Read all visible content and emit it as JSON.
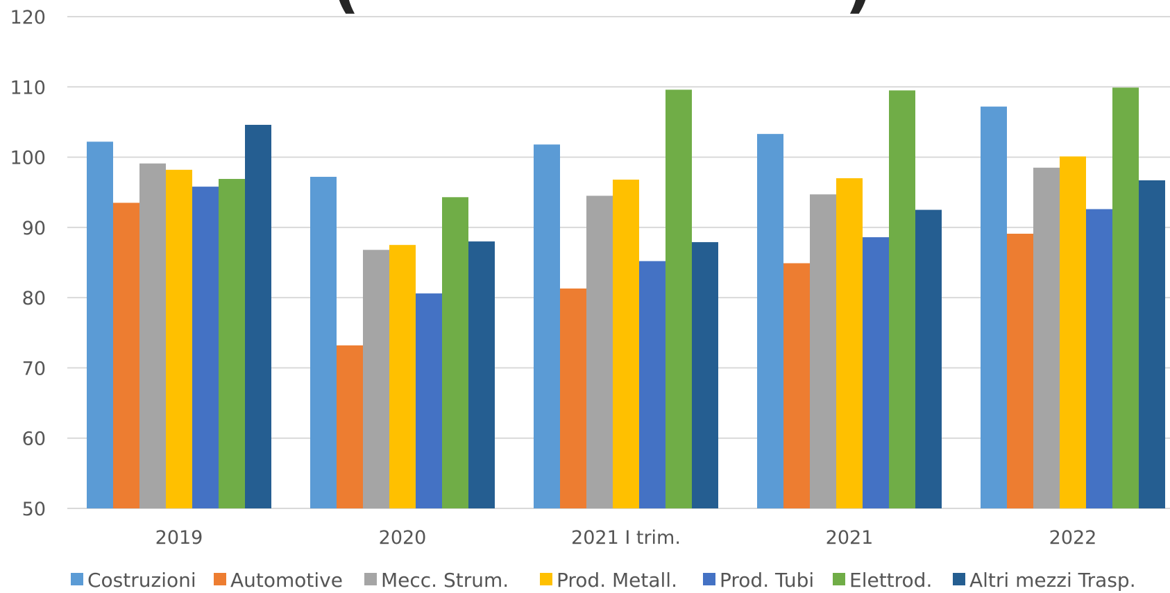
{
  "chart_data": {
    "type": "bar",
    "title_fragment_left": "(",
    "title_fragment_right": ")",
    "categories": [
      "2019",
      "2020",
      "2021 I trim.",
      "2021",
      "2022"
    ],
    "ylim": [
      50,
      120
    ],
    "yticks": [
      50,
      60,
      70,
      80,
      90,
      100,
      110,
      120
    ],
    "grid": true,
    "legend_position": "bottom",
    "series": [
      {
        "name": "Costruzioni",
        "color": "#5B9BD5",
        "values": [
          102.2,
          97.2,
          101.8,
          103.3,
          107.2
        ]
      },
      {
        "name": "Automotive",
        "color": "#ED7D31",
        "values": [
          93.5,
          73.2,
          81.3,
          84.9,
          89.1
        ]
      },
      {
        "name": "Mecc. Strum.",
        "color": "#A5A5A5",
        "values": [
          99.1,
          86.8,
          94.5,
          94.7,
          98.5
        ]
      },
      {
        "name": "Prod. Metall.",
        "color": "#FFC000",
        "values": [
          98.2,
          87.5,
          96.8,
          97.0,
          100.1
        ]
      },
      {
        "name": "Prod. Tubi",
        "color": "#4472C4",
        "values": [
          95.8,
          80.6,
          85.2,
          88.6,
          92.6
        ]
      },
      {
        "name": "Elettrod.",
        "color": "#70AD47",
        "values": [
          96.9,
          94.3,
          109.6,
          109.5,
          109.9
        ]
      },
      {
        "name": "Altri mezzi Trasp.",
        "color": "#255E91",
        "values": [
          104.6,
          88.0,
          87.9,
          92.5,
          96.7
        ]
      }
    ]
  }
}
